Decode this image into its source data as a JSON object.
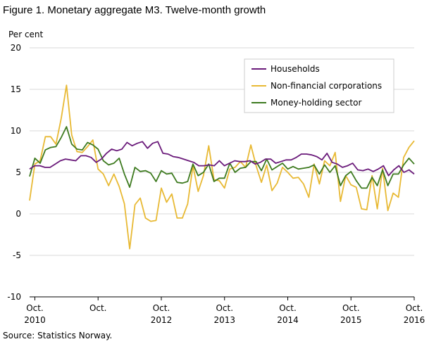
{
  "title": "Figure 1. Monetary aggregate M3. Twelve-month growth",
  "source": "Source: Statistics Norway.",
  "chart_data": {
    "type": "line",
    "ylabel": "Per cent",
    "ylim": [
      -10,
      20
    ],
    "yticks": [
      -10,
      -5,
      0,
      5,
      10,
      15,
      20
    ],
    "grid": true,
    "legend_position": "top-right",
    "x_start": "2010-09",
    "x_end": "2016-10",
    "x_ticks": [
      {
        "x": "2010-10",
        "label": "Oct.",
        "year": "2010"
      },
      {
        "x": "2011-10",
        "label": "Oct.",
        "year": ""
      },
      {
        "x": "2012-10",
        "label": "Oct.",
        "year": "2012"
      },
      {
        "x": "2013-10",
        "label": "Oct.",
        "year": "2013"
      },
      {
        "x": "2014-10",
        "label": "Oct.",
        "year": "2014"
      },
      {
        "x": "2015-10",
        "label": "Oct.",
        "year": "2015"
      },
      {
        "x": "2016-10",
        "label": "Oct.",
        "year": "2016"
      }
    ],
    "series": [
      {
        "name": "Households",
        "color": "#6a1a7a",
        "values": [
          5.4,
          5.8,
          5.8,
          5.6,
          5.6,
          6.0,
          6.4,
          6.6,
          6.5,
          6.4,
          7.0,
          7.0,
          6.8,
          6.2,
          6.6,
          7.3,
          7.8,
          7.6,
          7.8,
          8.6,
          8.2,
          8.5,
          8.7,
          7.9,
          8.5,
          8.7,
          7.3,
          7.2,
          6.9,
          6.8,
          6.6,
          6.4,
          6.2,
          5.8,
          5.8,
          5.9,
          5.8,
          6.4,
          5.8,
          6.1,
          6.4,
          6.3,
          6.3,
          6.4,
          6.0,
          6.2,
          6.6,
          6.6,
          6.1,
          6.3,
          6.5,
          6.5,
          6.8,
          7.2,
          7.2,
          7.1,
          6.9,
          6.5,
          7.3,
          6.2,
          6.0,
          5.6,
          5.8,
          6.1,
          5.3,
          5.2,
          5.4,
          5.1,
          5.4,
          5.8,
          4.6,
          5.3,
          5.8,
          5.0,
          5.3,
          4.8
        ]
      },
      {
        "name": "Non-financial corporations",
        "color": "#e8b934",
        "values": [
          1.6,
          6.0,
          6.4,
          9.3,
          9.3,
          8.4,
          11.5,
          15.5,
          9.5,
          7.5,
          7.4,
          8.1,
          8.9,
          5.4,
          4.8,
          3.4,
          4.8,
          3.3,
          1.2,
          -4.2,
          1.1,
          1.9,
          -0.5,
          -0.9,
          -0.8,
          3.1,
          1.4,
          2.4,
          -0.5,
          -0.5,
          1.2,
          5.8,
          2.7,
          4.6,
          8.2,
          4.1,
          4.0,
          3.1,
          5.4,
          5.6,
          6.3,
          5.6,
          8.3,
          5.8,
          3.8,
          5.9,
          2.8,
          3.7,
          5.6,
          5.0,
          4.3,
          4.4,
          3.6,
          2.0,
          6.0,
          3.6,
          6.4,
          5.8,
          7.4,
          1.5,
          4.6,
          3.5,
          3.2,
          0.6,
          0.5,
          4.6,
          0.6,
          5.5,
          0.4,
          2.5,
          2.0,
          6.8,
          8.0,
          8.8
        ]
      },
      {
        "name": "Money-holding sector",
        "color": "#3d7a1f",
        "values": [
          4.5,
          6.7,
          6.1,
          7.7,
          8.0,
          8.1,
          9.2,
          10.5,
          8.4,
          7.8,
          7.7,
          8.6,
          8.3,
          7.8,
          6.4,
          5.9,
          6.1,
          6.7,
          4.8,
          3.2,
          5.6,
          5.1,
          5.2,
          4.9,
          3.9,
          5.2,
          4.8,
          4.9,
          3.8,
          3.7,
          3.9,
          6.0,
          4.6,
          5.0,
          6.0,
          3.9,
          4.3,
          4.3,
          6.1,
          5.0,
          5.5,
          5.6,
          6.3,
          6.3,
          5.2,
          6.6,
          5.3,
          5.7,
          6.1,
          5.4,
          5.7,
          5.4,
          5.5,
          5.6,
          5.9,
          4.8,
          5.9,
          5.0,
          5.8,
          3.4,
          4.6,
          5.1,
          4.0,
          3.1,
          3.1,
          4.4,
          3.4,
          5.3,
          3.4,
          4.8,
          4.8,
          5.9,
          6.7,
          6.0
        ]
      }
    ]
  }
}
